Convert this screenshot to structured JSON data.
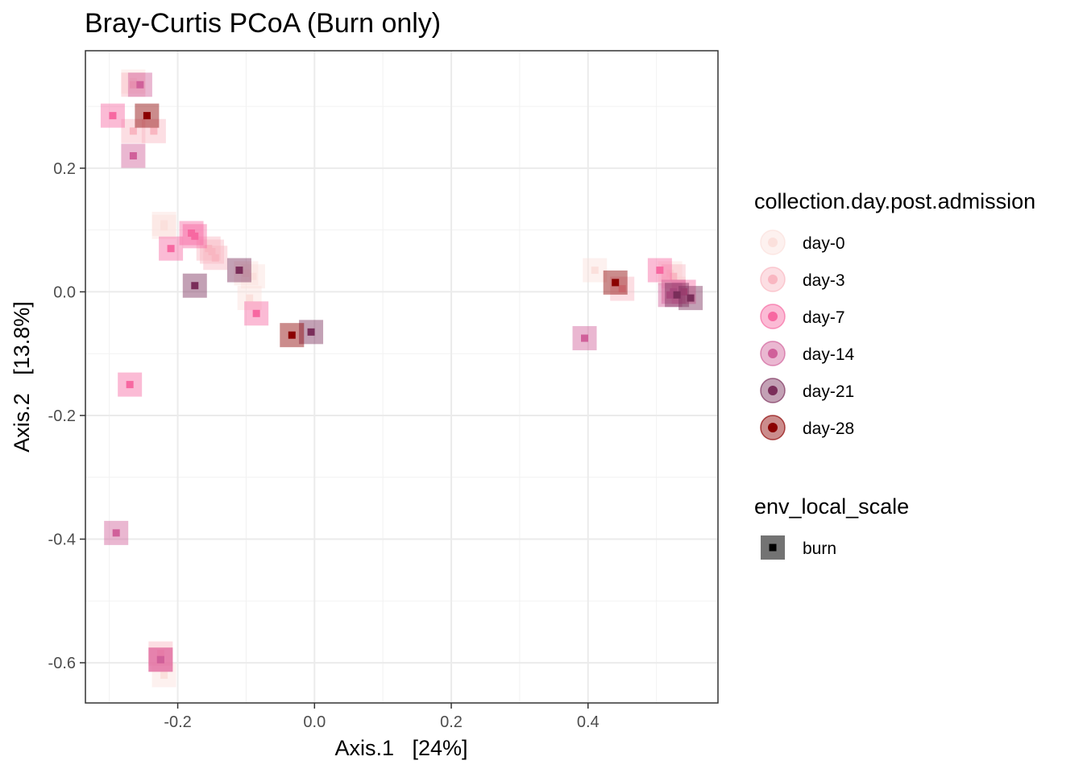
{
  "chart_data": {
    "type": "scatter",
    "title": "Bray-Curtis PCoA (Burn only)",
    "xlabel": "Axis.1   [24%]",
    "ylabel": "Axis.2   [13.8%]",
    "xlim": [
      -0.335,
      0.59
    ],
    "ylim": [
      -0.665,
      0.39
    ],
    "x_ticks": [
      -0.2,
      0.0,
      0.2,
      0.4
    ],
    "x_tick_labels": [
      "-0.2",
      "0.0",
      "0.2",
      "0.4"
    ],
    "y_ticks": [
      -0.6,
      -0.4,
      -0.2,
      0.0,
      0.2
    ],
    "y_tick_labels": [
      "-0.6",
      "-0.4",
      "-0.2",
      "0.0",
      "0.2"
    ],
    "grid": true,
    "legend_placement": "right",
    "color_legend": {
      "title": "collection.day.post.admission",
      "entries": [
        {
          "label": "day-0",
          "color": "#fbe0dc"
        },
        {
          "label": "day-3",
          "color": "#f9b6c1"
        },
        {
          "label": "day-7",
          "color": "#f768a1"
        },
        {
          "label": "day-14",
          "color": "#d0609a"
        },
        {
          "label": "day-21",
          "color": "#7a2e5a"
        },
        {
          "label": "day-28",
          "color": "#8b0000"
        }
      ]
    },
    "shape_legend": {
      "title": "env_local_scale",
      "entries": [
        {
          "label": "burn",
          "shape": "square",
          "color": "#000000"
        }
      ]
    },
    "series": [
      {
        "name": "day-0",
        "x": [
          -0.265,
          -0.22,
          -0.22,
          -0.1,
          -0.09,
          -0.095,
          0.41,
          0.52,
          0.525,
          -0.22
        ],
        "y": [
          0.34,
          0.11,
          0.105,
          0.03,
          0.025,
          -0.01,
          0.035,
          0.03,
          0.005,
          -0.62
        ]
      },
      {
        "name": "day-3",
        "x": [
          -0.265,
          -0.265,
          -0.235,
          -0.155,
          -0.15,
          -0.145,
          0.45,
          0.525,
          -0.225,
          -0.225
        ],
        "y": [
          0.335,
          0.26,
          0.26,
          0.07,
          0.065,
          0.055,
          0.005,
          0.025,
          -0.585,
          -0.595
        ]
      },
      {
        "name": "day-7",
        "x": [
          -0.295,
          -0.21,
          -0.18,
          -0.175,
          -0.085,
          -0.27,
          0.505,
          0.54,
          -0.225
        ],
        "y": [
          0.285,
          0.07,
          0.095,
          0.09,
          -0.035,
          -0.15,
          0.035,
          0.0,
          -0.595
        ]
      },
      {
        "name": "day-14",
        "x": [
          -0.255,
          -0.265,
          -0.29,
          0.395,
          0.52,
          0.525,
          -0.225
        ],
        "y": [
          0.335,
          0.22,
          -0.39,
          -0.075,
          -0.005,
          0.0,
          -0.595
        ]
      },
      {
        "name": "day-21",
        "x": [
          -0.175,
          -0.11,
          -0.005,
          0.55,
          0.53
        ],
        "y": [
          0.01,
          0.035,
          -0.065,
          -0.01,
          -0.005
        ]
      },
      {
        "name": "day-28",
        "x": [
          -0.245,
          -0.033,
          0.44
        ],
        "y": [
          0.285,
          -0.07,
          0.015
        ]
      }
    ]
  }
}
